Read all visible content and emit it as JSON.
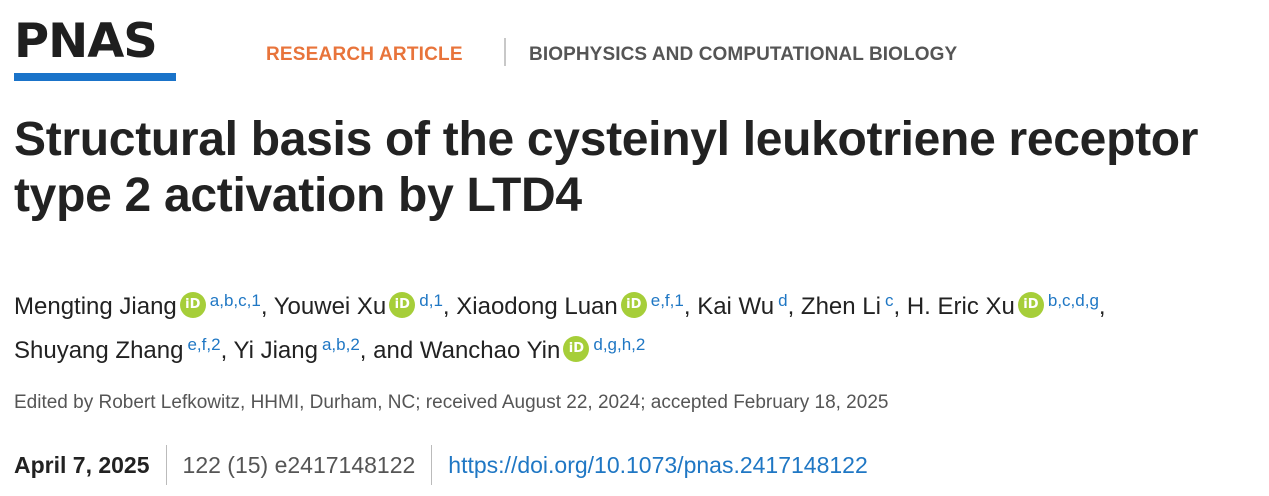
{
  "colors": {
    "logo_bar": "#1a73c9",
    "article_type": "#e8743b",
    "link": "#1f77c4",
    "orcid": "#a6ce39"
  },
  "header": {
    "logo_text": "PNAS",
    "article_type": "RESEARCH ARTICLE",
    "section": "BIOPHYSICS AND COMPUTATIONAL BIOLOGY"
  },
  "title": "Structural basis of the cysteinyl leukotriene receptor type 2 activation by LTD4",
  "authors": [
    {
      "name": "Mengting Jiang",
      "orcid": true,
      "aff": "a,b,c,1",
      "sep": ", "
    },
    {
      "name": "Youwei Xu",
      "orcid": true,
      "aff": "d,1",
      "sep": ", "
    },
    {
      "name": "Xiaodong Luan",
      "orcid": true,
      "aff": "e,f,1",
      "sep": ", "
    },
    {
      "name": "Kai Wu",
      "orcid": false,
      "aff": "d",
      "sep": ", "
    },
    {
      "name": "Zhen Li",
      "orcid": false,
      "aff": "c",
      "sep": ", "
    },
    {
      "name": "H. Eric Xu",
      "orcid": true,
      "aff": "b,c,d,g",
      "sep": ", "
    },
    {
      "name": "Shuyang Zhang",
      "orcid": false,
      "aff": "e,f,2",
      "sep": ", "
    },
    {
      "name": "Yi Jiang",
      "orcid": false,
      "aff": "a,b,2",
      "sep": ", and "
    },
    {
      "name": "Wanchao Yin",
      "orcid": true,
      "aff": "d,g,h,2",
      "sep": ""
    }
  ],
  "edited_by": "Edited by Robert Lefkowitz, HHMI, Durham, NC; received August 22, 2024; accepted February 18, 2025",
  "meta": {
    "date": "April 7, 2025",
    "citation": "122 (15) e2417148122",
    "doi": "https://doi.org/10.1073/pnas.2417148122"
  }
}
